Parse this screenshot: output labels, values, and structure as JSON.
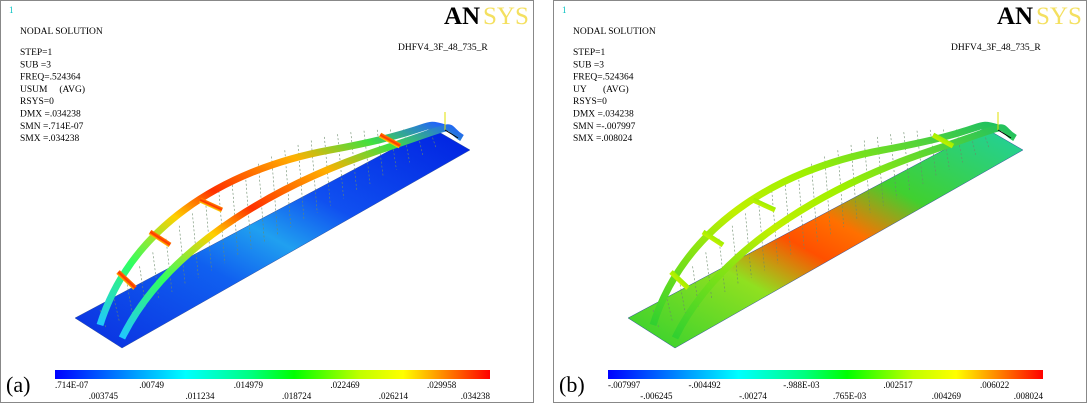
{
  "panels": [
    {
      "label": "(a)",
      "corner_number": "1",
      "header": "NODAL SOLUTION",
      "model": "DHFV4_3F_48_735_R",
      "logo_bold": "AN",
      "logo_light": "SYS",
      "info": [
        "STEP=1",
        "SUB =3",
        "FREQ=.524364",
        "USUM     (AVG)",
        "RSYS=0",
        "DMX =.034238",
        "SMN =.714E-07",
        "SMX =.034238"
      ],
      "legend": [
        ".714E-07",
        ".003745",
        ".00749",
        ".011234",
        ".014979",
        ".018724",
        ".022469",
        ".026214",
        ".029958",
        ".034238"
      ]
    },
    {
      "label": "(b)",
      "corner_number": "1",
      "header": "NODAL SOLUTION",
      "model": "DHFV4_3F_48_735_R",
      "logo_bold": "AN",
      "logo_light": "SYS",
      "info": [
        "STEP=1",
        "SUB =3",
        "FREQ=.524364",
        "UY       (AVG)",
        "RSYS=0",
        "DMX =.034238",
        "SMN =-.007997",
        "SMX =.008024"
      ],
      "legend": [
        "-.007997",
        "-.006245",
        "-.004492",
        "-.00274",
        "-.988E-03",
        ".765E-03",
        ".002517",
        ".004269",
        ".006022",
        ".008024"
      ]
    }
  ]
}
